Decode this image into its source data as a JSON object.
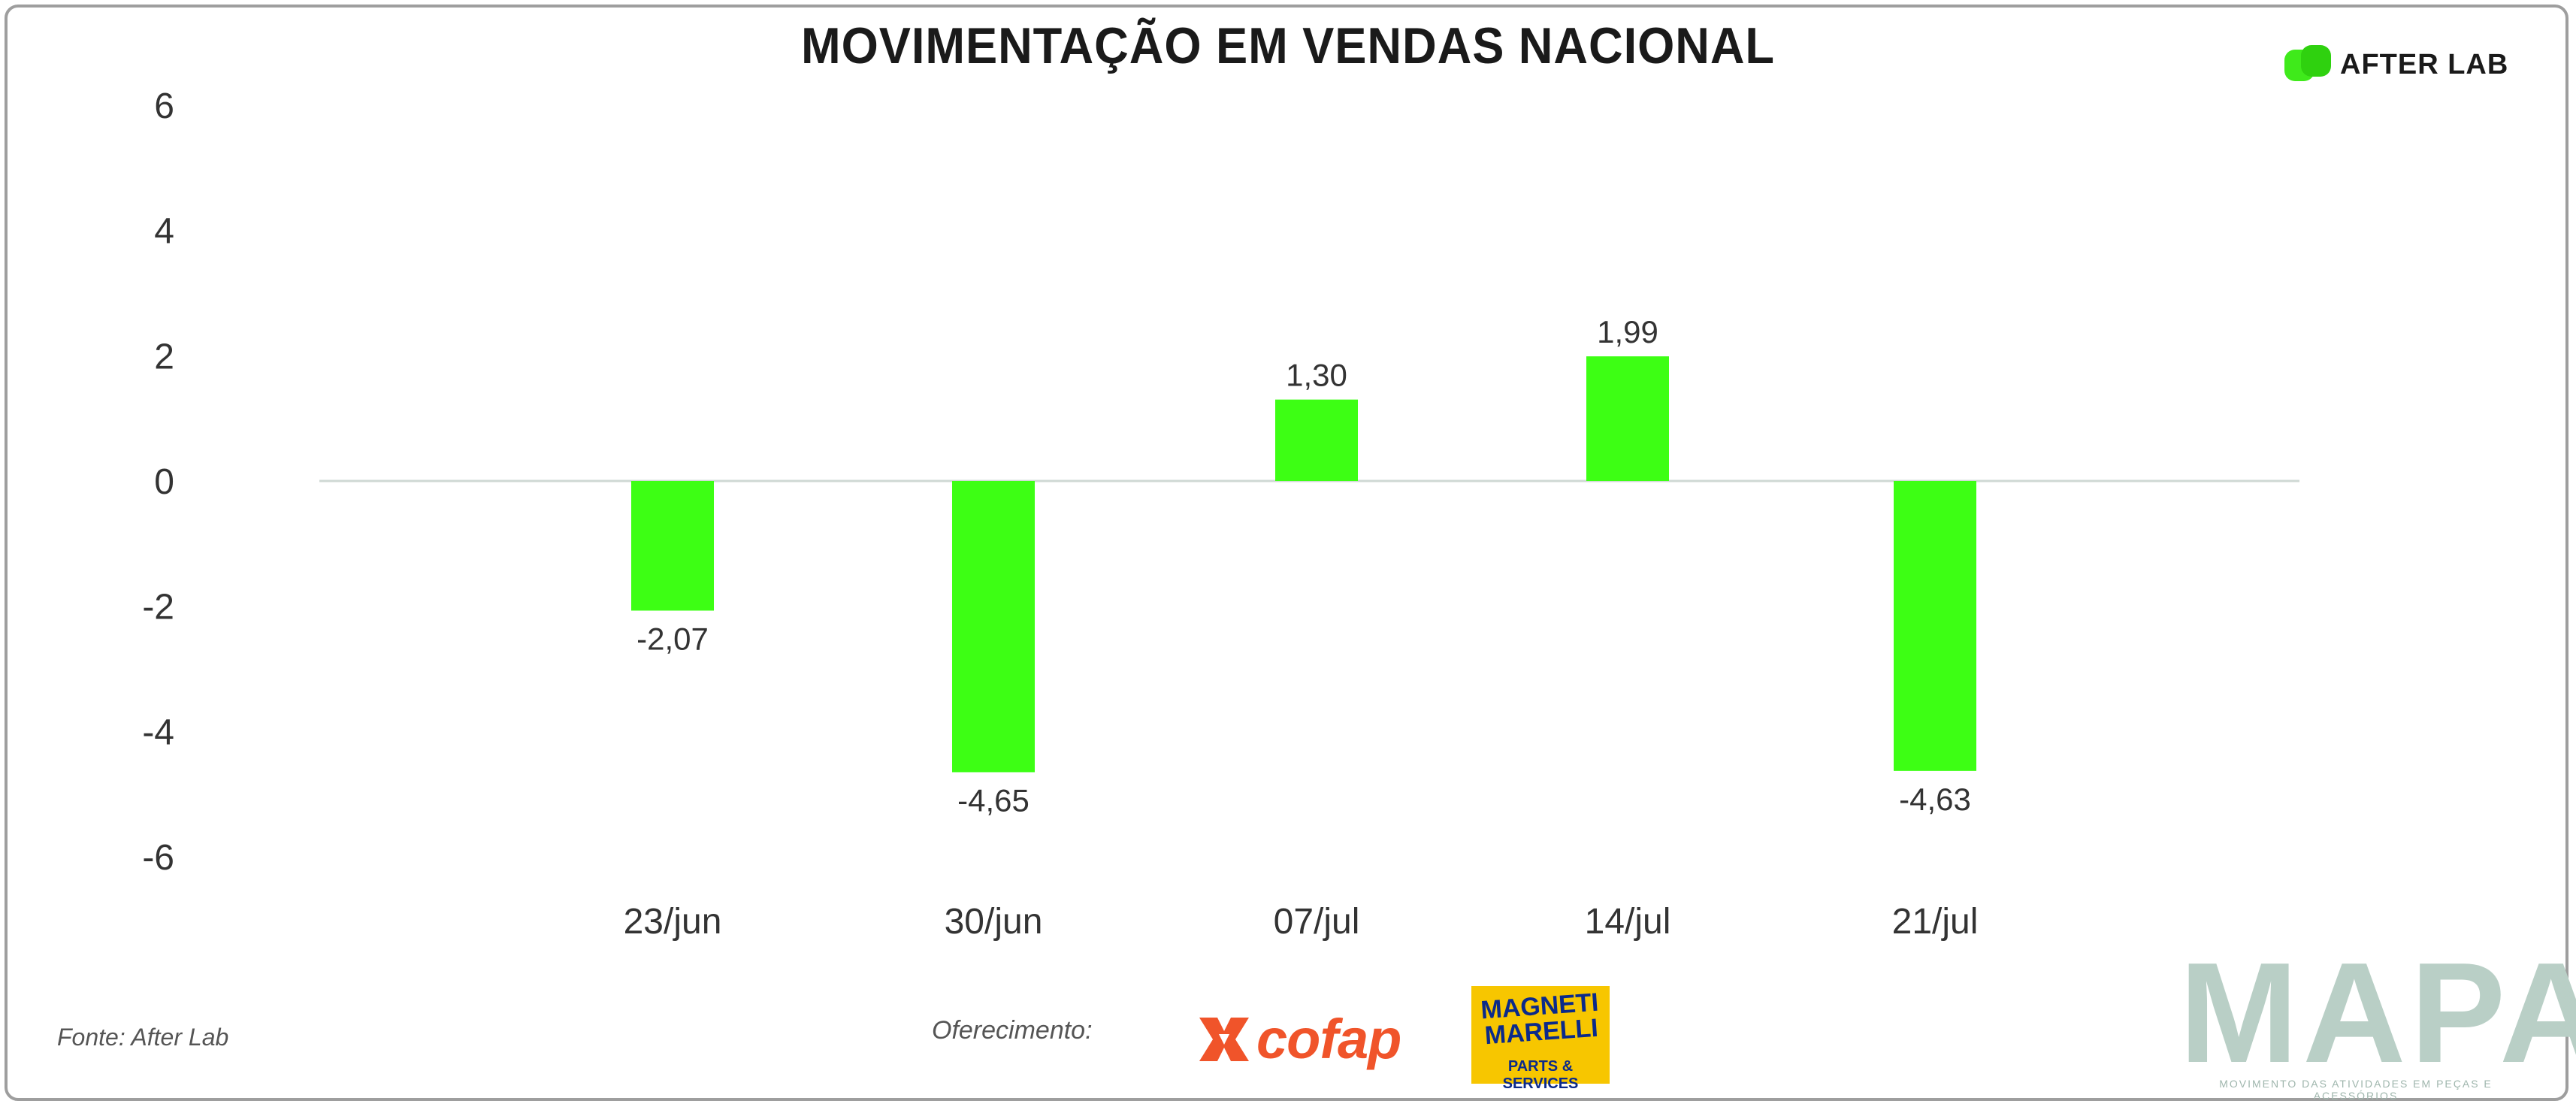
{
  "header": {
    "title": "MOVIMENTAÇÃO EM VENDAS NACIONAL",
    "brand_logo": "AFTER LAB"
  },
  "chart_data": {
    "type": "bar",
    "title": "MOVIMENTAÇÃO EM VENDAS NACIONAL",
    "categories": [
      "23/jun",
      "30/jun",
      "07/jul",
      "14/jul",
      "21/jul"
    ],
    "values": [
      -2.07,
      -4.65,
      1.3,
      1.99,
      -4.63
    ],
    "value_labels": [
      "-2,07",
      "-4,65",
      "1,30",
      "1,99",
      "-4,63"
    ],
    "y_ticks": [
      6,
      4,
      2,
      0,
      -2,
      -4,
      -6
    ],
    "y_tick_labels": [
      "6",
      "4",
      "2",
      "0",
      "-2",
      "-4",
      "-6"
    ],
    "ylim": [
      -6,
      6
    ],
    "grid": false,
    "bar_color": "#3dff14",
    "zero_line_color": "#cfd8d4"
  },
  "footer": {
    "source": "Fonte: After Lab",
    "sponsor_label": "Oferecimento:",
    "sponsor_cofap": "cofap",
    "sponsor_magneti_top": "MAGNETI MARELLI",
    "sponsor_magneti_bottom": "PARTS & SERVICES",
    "mapa_title": "MAPA",
    "mapa_subtitle": "MOVIMENTO DAS ATIVIDADES EM PEÇAS E ACESSÓRIOS"
  },
  "colors": {
    "accent_green": "#3fea1b",
    "cofap_orange": "#f0542a",
    "magneti_yellow": "#f7c600",
    "magneti_blue": "#0b2a8a",
    "mapa_grey": "#b9cfc6"
  }
}
